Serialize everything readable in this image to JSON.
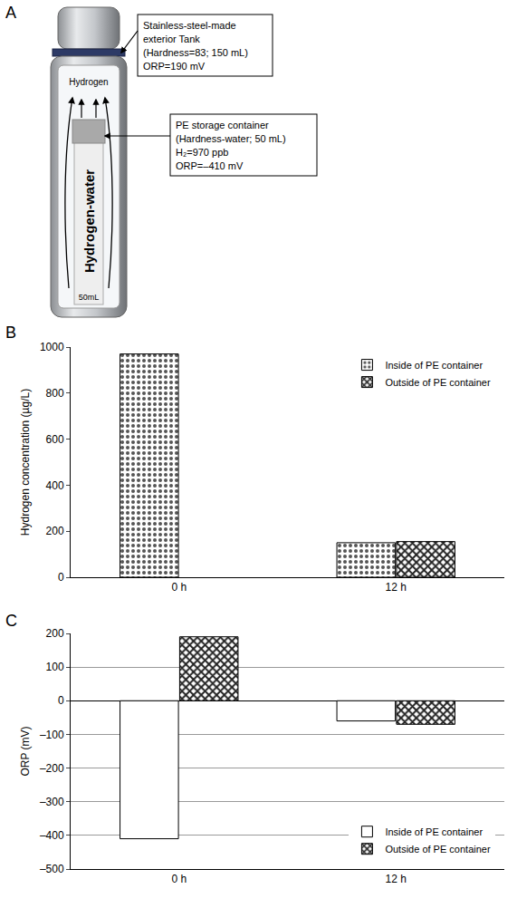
{
  "diagram": {
    "panel": "A",
    "gas_label": "Hydrogen",
    "water_label": "Hydrogen-water",
    "volume_label": "50mL",
    "boxes": [
      {
        "lines": [
          "Stainless-steel-made",
          "exterior Tank",
          "(Hardness=83; 150 mL)",
          "ORP=190 mV"
        ]
      },
      {
        "lines": [
          "PE storage container",
          "(Hardness-water; 50 mL)",
          "H₂=970 ppb",
          "ORP=–410 mV"
        ]
      }
    ]
  },
  "chart_data": [
    {
      "panel": "B",
      "type": "bar",
      "y_label": "Hydrogen concentration (µg/L)",
      "categories": [
        "0 h",
        "12 h"
      ],
      "series": [
        {
          "name": "Inside of PE container",
          "color": "#555555",
          "marker": "dots",
          "values": [
            970,
            150
          ]
        },
        {
          "name": "Outside of PE container",
          "color": "#222222",
          "marker": "crosshatch",
          "values": [
            null,
            155
          ]
        }
      ],
      "ylim": [
        0,
        1000
      ],
      "yticks": [
        0,
        200,
        400,
        600,
        800,
        1000
      ],
      "grid": false,
      "legend": "top right"
    },
    {
      "panel": "C",
      "type": "bar",
      "y_label": "ORP (mV)",
      "categories": [
        "0 h",
        "12 h"
      ],
      "series": [
        {
          "name": "Inside of PE container",
          "color": "#000000",
          "marker": "none",
          "values": [
            -410,
            -60
          ]
        },
        {
          "name": "Outside of PE container",
          "color": "#222222",
          "marker": "crosshatch",
          "values": [
            190,
            -70
          ]
        }
      ],
      "ylim": [
        -500,
        200
      ],
      "yticks": [
        {
          "value": -500,
          "label": "–500"
        },
        {
          "value": -400,
          "label": "–400"
        },
        {
          "value": -300,
          "label": "–300"
        },
        {
          "value": -200,
          "label": "–200"
        },
        {
          "value": -100,
          "label": "–100"
        },
        0,
        100,
        200
      ],
      "grid": true,
      "legend": "bottom right"
    }
  ]
}
